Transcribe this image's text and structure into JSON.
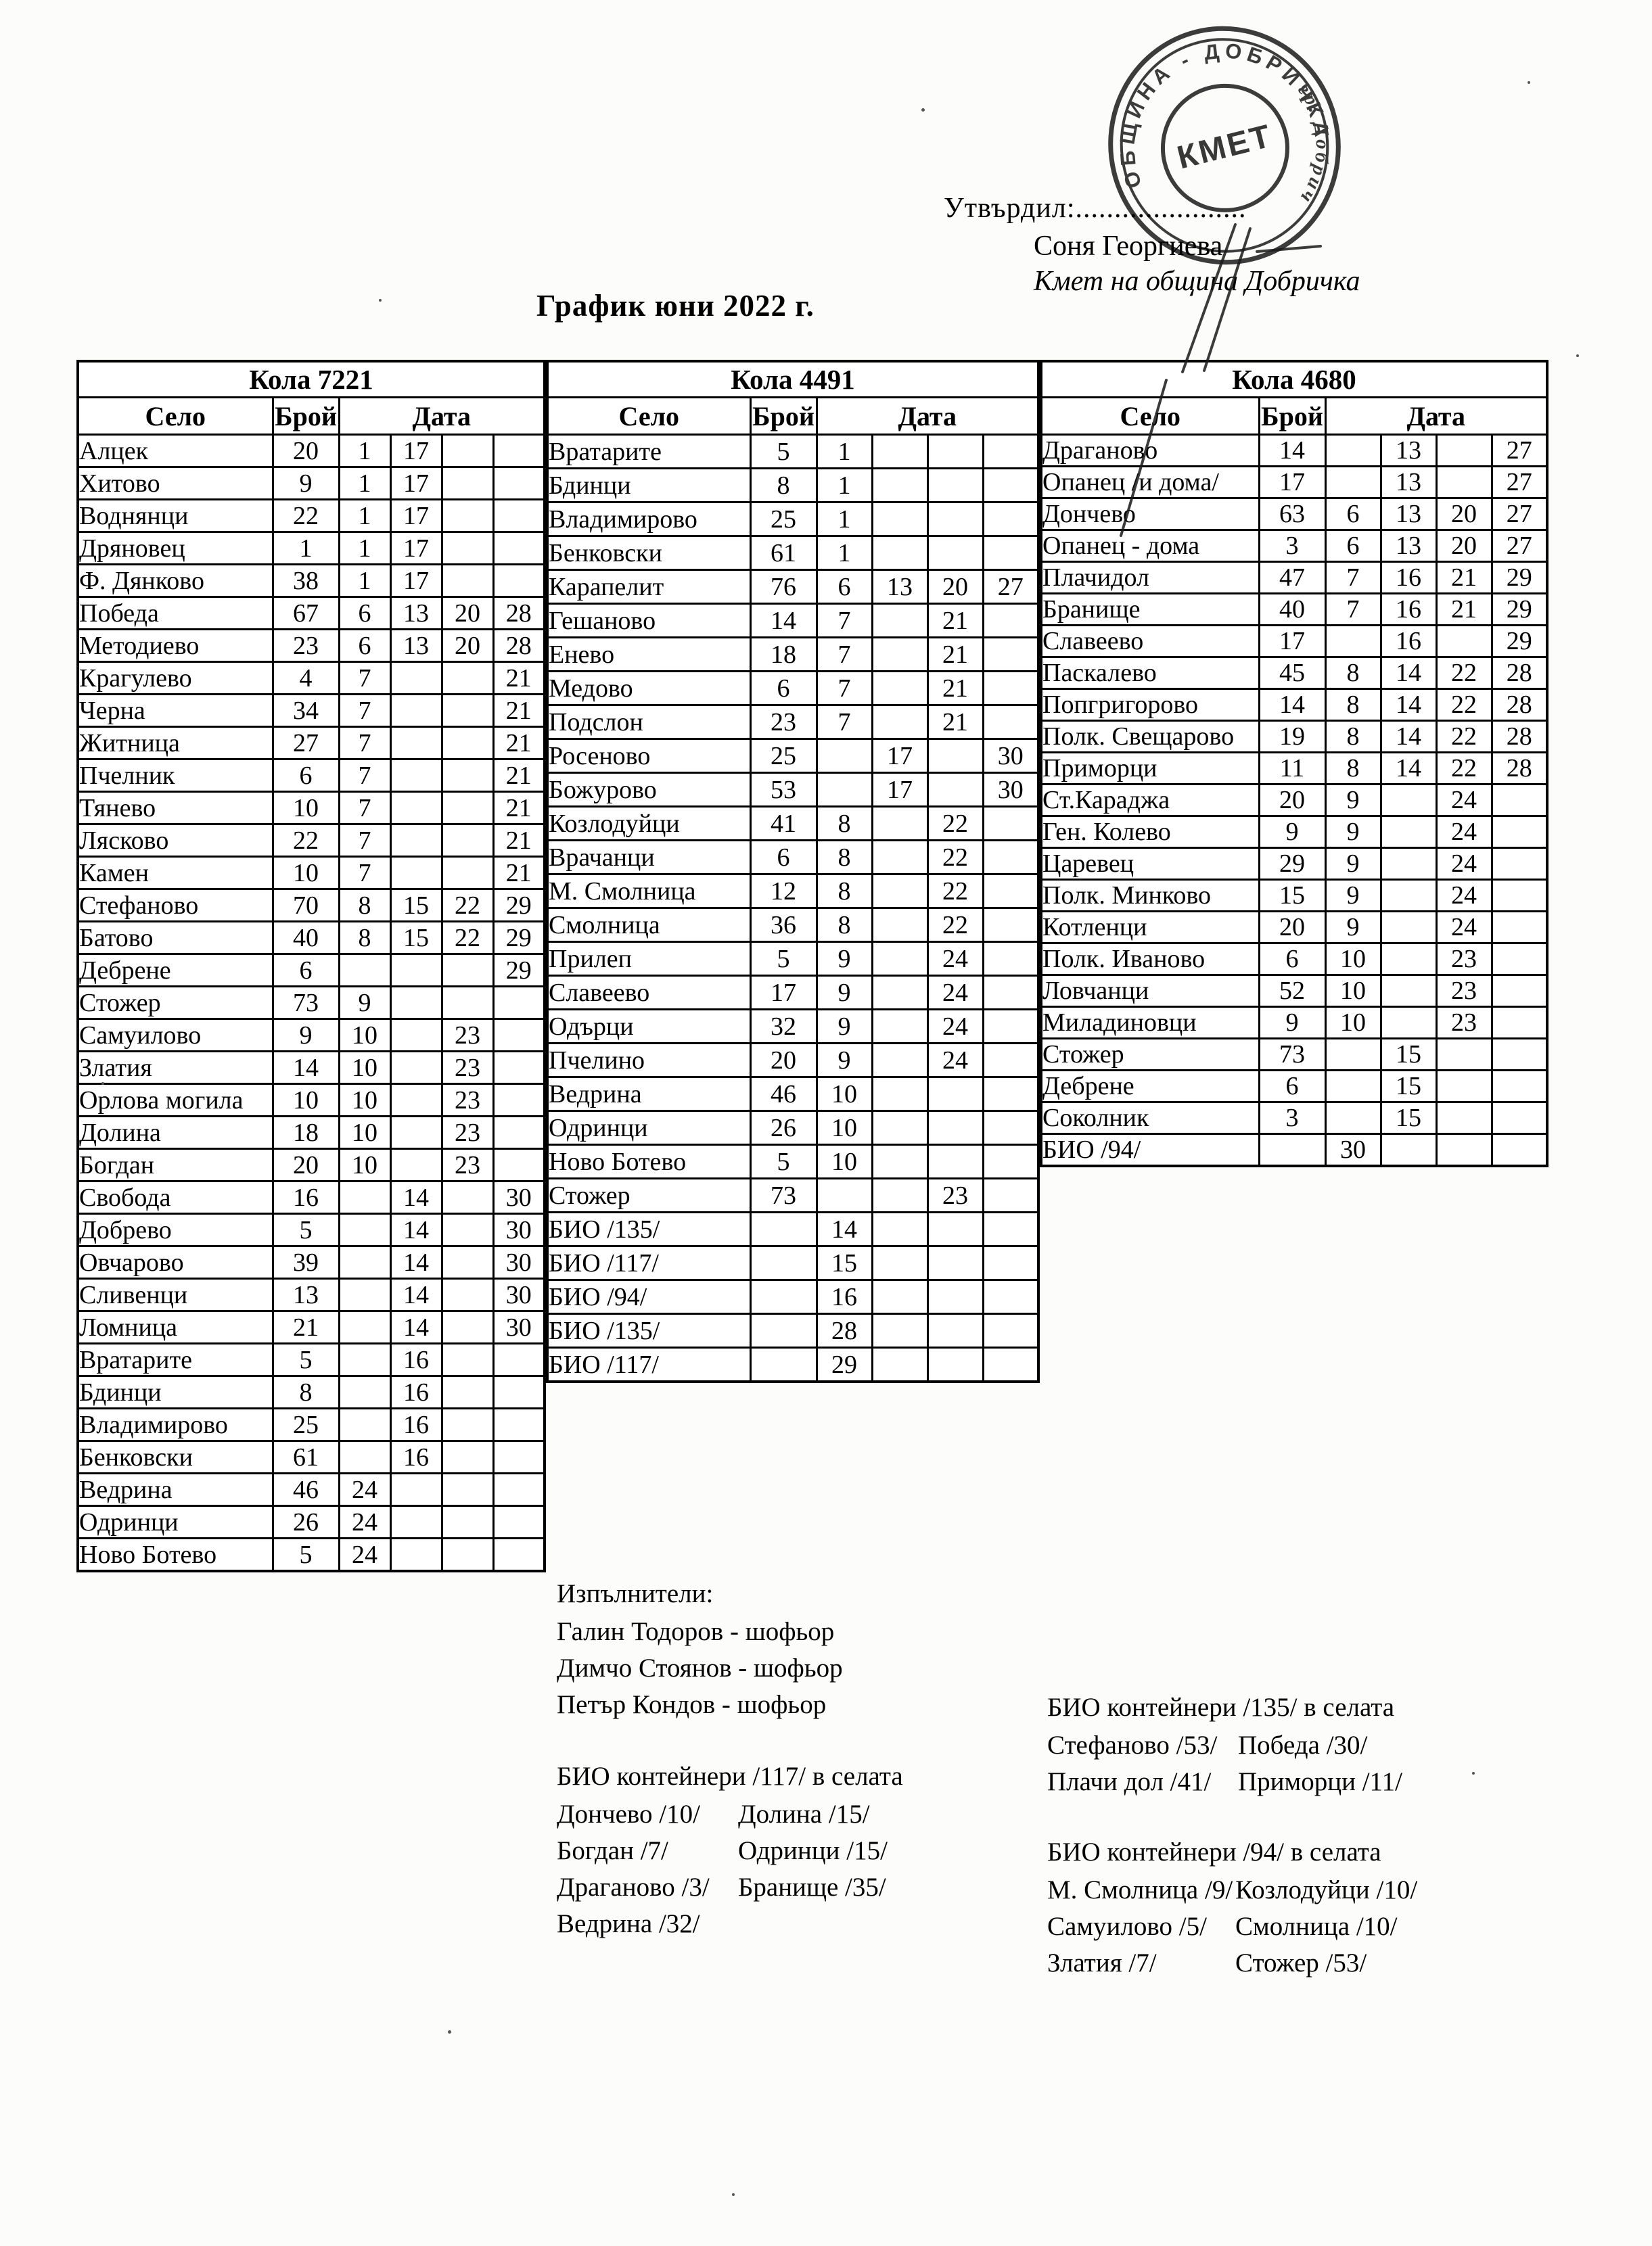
{
  "ink_color": "#1c1c1c",
  "approval": {
    "label": "Утвърдил:......................",
    "name": "Соня Георгиева",
    "title": "Кмет  на община Добричка"
  },
  "stamp": {
    "ring_text": "ОБЩИНА - ДОБРИЧКА",
    "ring_text_secondary": "гр. Добрич",
    "center_text": "КМЕТ"
  },
  "title": "График юни 2022 г.",
  "tables": [
    {
      "title": "Кола 7221",
      "headers": {
        "village": "Село",
        "count": "Брой",
        "date": "Дата"
      },
      "rows": [
        [
          "Алцек",
          "20",
          "1",
          "17",
          "",
          ""
        ],
        [
          "Хитово",
          "9",
          "1",
          "17",
          "",
          ""
        ],
        [
          "Воднянци",
          "22",
          "1",
          "17",
          "",
          ""
        ],
        [
          "Дряновец",
          "1",
          "1",
          "17",
          "",
          ""
        ],
        [
          "Ф. Дянково",
          "38",
          "1",
          "17",
          "",
          ""
        ],
        [
          "Победа",
          "67",
          "6",
          "13",
          "20",
          "28"
        ],
        [
          "Методиево",
          "23",
          "6",
          "13",
          "20",
          "28"
        ],
        [
          "Крагулево",
          "4",
          "7",
          "",
          "",
          "21"
        ],
        [
          "Черна",
          "34",
          "7",
          "",
          "",
          "21"
        ],
        [
          "Житница",
          "27",
          "7",
          "",
          "",
          "21"
        ],
        [
          "Пчелник",
          "6",
          "7",
          "",
          "",
          "21"
        ],
        [
          "Тянево",
          "10",
          "7",
          "",
          "",
          "21"
        ],
        [
          "Лясково",
          "22",
          "7",
          "",
          "",
          "21"
        ],
        [
          "Камен",
          "10",
          "7",
          "",
          "",
          "21"
        ],
        [
          "Стефаново",
          "70",
          "8",
          "15",
          "22",
          "29"
        ],
        [
          "Батово",
          "40",
          "8",
          "15",
          "22",
          "29"
        ],
        [
          "Дебрене",
          "6",
          "",
          "",
          "",
          "29"
        ],
        [
          "Стожер",
          "73",
          "9",
          "",
          "",
          ""
        ],
        [
          "Самуилово",
          "9",
          "10",
          "",
          "23",
          ""
        ],
        [
          "Златия",
          "14",
          "10",
          "",
          "23",
          ""
        ],
        [
          "Орлова могила",
          "10",
          "10",
          "",
          "23",
          ""
        ],
        [
          "Долина",
          "18",
          "10",
          "",
          "23",
          ""
        ],
        [
          "Богдан",
          "20",
          "10",
          "",
          "23",
          ""
        ],
        [
          "Свобода",
          "16",
          "",
          "14",
          "",
          "30"
        ],
        [
          "Добрево",
          "5",
          "",
          "14",
          "",
          "30"
        ],
        [
          "Овчарово",
          "39",
          "",
          "14",
          "",
          "30"
        ],
        [
          "Сливенци",
          "13",
          "",
          "14",
          "",
          "30"
        ],
        [
          "Ломница",
          "21",
          "",
          "14",
          "",
          "30"
        ],
        [
          "Вратарите",
          "5",
          "",
          "16",
          "",
          ""
        ],
        [
          "Бдинци",
          "8",
          "",
          "16",
          "",
          ""
        ],
        [
          "Владимирово",
          "25",
          "",
          "16",
          "",
          ""
        ],
        [
          "Бенковски",
          "61",
          "",
          "16",
          "",
          ""
        ],
        [
          "Ведрина",
          "46",
          "24",
          "",
          "",
          ""
        ],
        [
          "Одринци",
          "26",
          "24",
          "",
          "",
          ""
        ],
        [
          "Ново Ботево",
          "5",
          "24",
          "",
          "",
          ""
        ]
      ]
    },
    {
      "title": "Кола 4491",
      "headers": {
        "village": "Село",
        "count": "Брой",
        "date": "Дата"
      },
      "rows": [
        [
          "Вратарите",
          "5",
          "1",
          "",
          "",
          ""
        ],
        [
          "Бдинци",
          "8",
          "1",
          "",
          "",
          ""
        ],
        [
          "Владимирово",
          "25",
          "1",
          "",
          "",
          ""
        ],
        [
          "Бенковски",
          "61",
          "1",
          "",
          "",
          ""
        ],
        [
          "Карапелит",
          "76",
          "6",
          "13",
          "20",
          "27"
        ],
        [
          "Гешаново",
          "14",
          "7",
          "",
          "21",
          ""
        ],
        [
          "Енево",
          "18",
          "7",
          "",
          "21",
          ""
        ],
        [
          "Медово",
          "6",
          "7",
          "",
          "21",
          ""
        ],
        [
          "Подслон",
          "23",
          "7",
          "",
          "21",
          ""
        ],
        [
          "Росеново",
          "25",
          "",
          "17",
          "",
          "30"
        ],
        [
          "Божурово",
          "53",
          "",
          "17",
          "",
          "30"
        ],
        [
          "Козлодуйци",
          "41",
          "8",
          "",
          "22",
          ""
        ],
        [
          "Врачанци",
          "6",
          "8",
          "",
          "22",
          ""
        ],
        [
          "М. Смолница",
          "12",
          "8",
          "",
          "22",
          ""
        ],
        [
          "Смолница",
          "36",
          "8",
          "",
          "22",
          ""
        ],
        [
          "Прилеп",
          "5",
          "9",
          "",
          "24",
          ""
        ],
        [
          "Славеево",
          "17",
          "9",
          "",
          "24",
          ""
        ],
        [
          "Одърци",
          "32",
          "9",
          "",
          "24",
          ""
        ],
        [
          "Пчелино",
          "20",
          "9",
          "",
          "24",
          ""
        ],
        [
          "Ведрина",
          "46",
          "10",
          "",
          "",
          ""
        ],
        [
          "Одринци",
          "26",
          "10",
          "",
          "",
          ""
        ],
        [
          "Ново Ботево",
          "5",
          "10",
          "",
          "",
          ""
        ],
        [
          "Стожер",
          "73",
          "",
          "",
          "23",
          ""
        ],
        [
          "БИО /135/",
          "",
          "14",
          "",
          "",
          ""
        ],
        [
          "БИО /117/",
          "",
          "15",
          "",
          "",
          ""
        ],
        [
          "БИО /94/",
          "",
          "16",
          "",
          "",
          ""
        ],
        [
          "БИО /135/",
          "",
          "28",
          "",
          "",
          ""
        ],
        [
          "БИО /117/",
          "",
          "29",
          "",
          "",
          ""
        ]
      ]
    },
    {
      "title": "Кола 4680",
      "headers": {
        "village": "Село",
        "count": "Брой",
        "date": "Дата"
      },
      "rows": [
        [
          "Драганово",
          "14",
          "",
          "13",
          "",
          "27"
        ],
        [
          "Опанец /и дома/",
          "17",
          "",
          "13",
          "",
          "27"
        ],
        [
          "Дончево",
          "63",
          "6",
          "13",
          "20",
          "27"
        ],
        [
          "Опанец - дома",
          "3",
          "6",
          "13",
          "20",
          "27"
        ],
        [
          "Плачидол",
          "47",
          "7",
          "16",
          "21",
          "29"
        ],
        [
          "Бранище",
          "40",
          "7",
          "16",
          "21",
          "29"
        ],
        [
          "Славеево",
          "17",
          "",
          "16",
          "",
          "29"
        ],
        [
          "Паскалево",
          "45",
          "8",
          "14",
          "22",
          "28"
        ],
        [
          "Попгригорово",
          "14",
          "8",
          "14",
          "22",
          "28"
        ],
        [
          "Полк. Свещарово",
          "19",
          "8",
          "14",
          "22",
          "28"
        ],
        [
          "Приморци",
          "11",
          "8",
          "14",
          "22",
          "28"
        ],
        [
          "Ст.Караджа",
          "20",
          "9",
          "",
          "24",
          ""
        ],
        [
          "Ген. Колево",
          "9",
          "9",
          "",
          "24",
          ""
        ],
        [
          "Царевец",
          "29",
          "9",
          "",
          "24",
          ""
        ],
        [
          "Полк. Минково",
          "15",
          "9",
          "",
          "24",
          ""
        ],
        [
          "Котленци",
          "20",
          "9",
          "",
          "24",
          ""
        ],
        [
          "Полк. Иваново",
          "6",
          "10",
          "",
          "23",
          ""
        ],
        [
          "Ловчанци",
          "52",
          "10",
          "",
          "23",
          ""
        ],
        [
          "Миладиновци",
          "9",
          "10",
          "",
          "23",
          ""
        ],
        [
          "Стожер",
          "73",
          "",
          "15",
          "",
          ""
        ],
        [
          "Дебрене",
          "6",
          "",
          "15",
          "",
          ""
        ],
        [
          "Соколник",
          "3",
          "",
          "15",
          "",
          ""
        ],
        [
          "БИО /94/",
          "",
          "30",
          "",
          "",
          ""
        ]
      ]
    }
  ],
  "executors": {
    "heading": "Изпълнители:",
    "items": [
      "Галин Тодоров - шофьор",
      "Димчо Стоянов - шофьор",
      "Петър Кондов - шофьор"
    ]
  },
  "bio_sections": [
    {
      "heading": "БИО контейнери /135/ в селата",
      "col1": [
        "Стефаново /53/",
        "Плачи дол /41/"
      ],
      "col2": [
        "Победа /30/",
        "Приморци /11/"
      ]
    },
    {
      "heading": "БИО контейнери /117/ в селата",
      "col1": [
        "Дончево /10/",
        "Богдан /7/",
        "Драганово /3/",
        "Ведрина /32/"
      ],
      "col2": [
        "Долина /15/",
        "Одринци /15/",
        "Бранище /35/"
      ]
    },
    {
      "heading": "БИО контейнери /94/ в селата",
      "col1": [
        "М. Смолница /9/",
        "Самуилово /5/",
        "Златия /7/"
      ],
      "col2": [
        "Козлодуйци /10/",
        "Смолница /10/",
        "Стожер /53/"
      ]
    }
  ]
}
